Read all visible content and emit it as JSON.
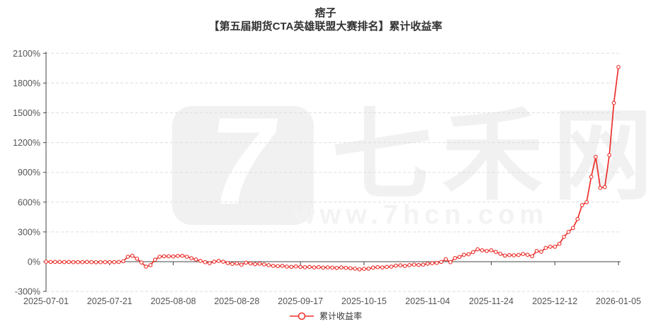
{
  "title": {
    "line1": "痞子",
    "line2": "【第五届期货CTA英雄联盟大赛排名】累计收益率"
  },
  "watermark": {
    "logo_glyph": "7",
    "brand": "七禾网",
    "url": "www.7hcn.com"
  },
  "legend": {
    "series_label": "累计收益率"
  },
  "colors": {
    "series": "#ec302b",
    "marker_fill": "#ffffff",
    "axis": "#444444",
    "grid": "#dddddd",
    "tick_label": "#555555",
    "title": "#333333",
    "watermark": "#f1f1f1",
    "background": "#ffffff"
  },
  "chart_data": {
    "type": "line",
    "title": "痞子【第五届期货CTA英雄联盟大赛排名】累计收益率",
    "series_name": "累计收益率",
    "unit": "%",
    "marker": "open-circle",
    "grid": "dashed-horizontal",
    "legend_position": "bottom-center",
    "ylim": [
      -300,
      2100
    ],
    "y_tick_values": [
      2100,
      1800,
      1500,
      1200,
      900,
      600,
      300,
      0,
      -300
    ],
    "y_tick_labels": [
      "2100%",
      "1800%",
      "1500%",
      "1200%",
      "900%",
      "600%",
      "300%",
      "0%",
      "-300%"
    ],
    "x_ticks": [
      {
        "label": "2025-07-01",
        "i": 0
      },
      {
        "label": "2025-07-21",
        "i": 14
      },
      {
        "label": "2025-08-08",
        "i": 28
      },
      {
        "label": "2025-08-28",
        "i": 42
      },
      {
        "label": "2025-09-17",
        "i": 56
      },
      {
        "label": "2025-10-15",
        "i": 70
      },
      {
        "label": "2025-11-04",
        "i": 84
      },
      {
        "label": "2025-11-24",
        "i": 98
      },
      {
        "label": "2025-12-12",
        "i": 112
      },
      {
        "label": "2026-01-05",
        "i": 126
      }
    ],
    "dates": [
      "2025-07-01",
      "2025-07-02",
      "2025-07-03",
      "2025-07-04",
      "2025-07-07",
      "2025-07-08",
      "2025-07-09",
      "2025-07-10",
      "2025-07-11",
      "2025-07-14",
      "2025-07-15",
      "2025-07-16",
      "2025-07-17",
      "2025-07-18",
      "2025-07-21",
      "2025-07-22",
      "2025-07-23",
      "2025-07-24",
      "2025-07-25",
      "2025-07-28",
      "2025-07-29",
      "2025-07-30",
      "2025-07-31",
      "2025-08-01",
      "2025-08-04",
      "2025-08-05",
      "2025-08-06",
      "2025-08-07",
      "2025-08-08",
      "2025-08-11",
      "2025-08-12",
      "2025-08-13",
      "2025-08-14",
      "2025-08-15",
      "2025-08-18",
      "2025-08-19",
      "2025-08-20",
      "2025-08-21",
      "2025-08-22",
      "2025-08-25",
      "2025-08-26",
      "2025-08-27",
      "2025-08-28",
      "2025-08-29",
      "2025-09-01",
      "2025-09-02",
      "2025-09-03",
      "2025-09-04",
      "2025-09-05",
      "2025-09-08",
      "2025-09-09",
      "2025-09-10",
      "2025-09-11",
      "2025-09-12",
      "2025-09-15",
      "2025-09-16",
      "2025-09-17",
      "2025-09-18",
      "2025-09-19",
      "2025-09-22",
      "2025-09-23",
      "2025-09-24",
      "2025-09-25",
      "2025-09-26",
      "2025-09-29",
      "2025-09-30",
      "2025-10-09",
      "2025-10-10",
      "2025-10-13",
      "2025-10-14",
      "2025-10-15",
      "2025-10-16",
      "2025-10-17",
      "2025-10-20",
      "2025-10-21",
      "2025-10-22",
      "2025-10-23",
      "2025-10-24",
      "2025-10-27",
      "2025-10-28",
      "2025-10-29",
      "2025-10-30",
      "2025-10-31",
      "2025-11-03",
      "2025-11-04",
      "2025-11-05",
      "2025-11-06",
      "2025-11-07",
      "2025-11-10",
      "2025-11-11",
      "2025-11-12",
      "2025-11-13",
      "2025-11-14",
      "2025-11-17",
      "2025-11-18",
      "2025-11-19",
      "2025-11-20",
      "2025-11-21",
      "2025-11-24",
      "2025-11-25",
      "2025-11-26",
      "2025-11-27",
      "2025-11-28",
      "2025-12-01",
      "2025-12-02",
      "2025-12-03",
      "2025-12-04",
      "2025-12-05",
      "2025-12-08",
      "2025-12-09",
      "2025-12-10",
      "2025-12-11",
      "2025-12-12",
      "2025-12-15",
      "2025-12-16",
      "2025-12-17",
      "2025-12-18",
      "2025-12-19",
      "2025-12-22",
      "2025-12-23",
      "2025-12-24",
      "2025-12-25",
      "2025-12-26",
      "2025-12-29",
      "2025-12-30",
      "2025-12-31",
      "2026-01-05"
    ],
    "values": [
      0,
      -2,
      -3,
      -2,
      -4,
      -3,
      -5,
      -4,
      -5,
      -3,
      -4,
      -6,
      -5,
      -4,
      -5,
      -4,
      -3,
      5,
      50,
      60,
      30,
      -8,
      -50,
      -35,
      20,
      50,
      55,
      55,
      53,
      58,
      60,
      50,
      35,
      22,
      8,
      -5,
      -15,
      0,
      8,
      0,
      -14,
      -22,
      -18,
      -30,
      -10,
      -18,
      -25,
      -20,
      -28,
      -35,
      -42,
      -45,
      -42,
      -50,
      -53,
      -48,
      -53,
      -56,
      -53,
      -58,
      -55,
      -60,
      -57,
      -60,
      -63,
      -58,
      -62,
      -66,
      -70,
      -77,
      -72,
      -70,
      -60,
      -55,
      -58,
      -53,
      -50,
      -40,
      -36,
      -43,
      -35,
      -29,
      -33,
      -30,
      -20,
      -15,
      -12,
      -2,
      25,
      -5,
      36,
      48,
      70,
      75,
      96,
      125,
      115,
      108,
      115,
      98,
      80,
      62,
      66,
      64,
      68,
      78,
      70,
      55,
      108,
      100,
      139,
      150,
      151,
      180,
      250,
      300,
      340,
      430,
      570,
      600,
      855,
      1055,
      745,
      752,
      1073,
      1600,
      1960
    ]
  }
}
